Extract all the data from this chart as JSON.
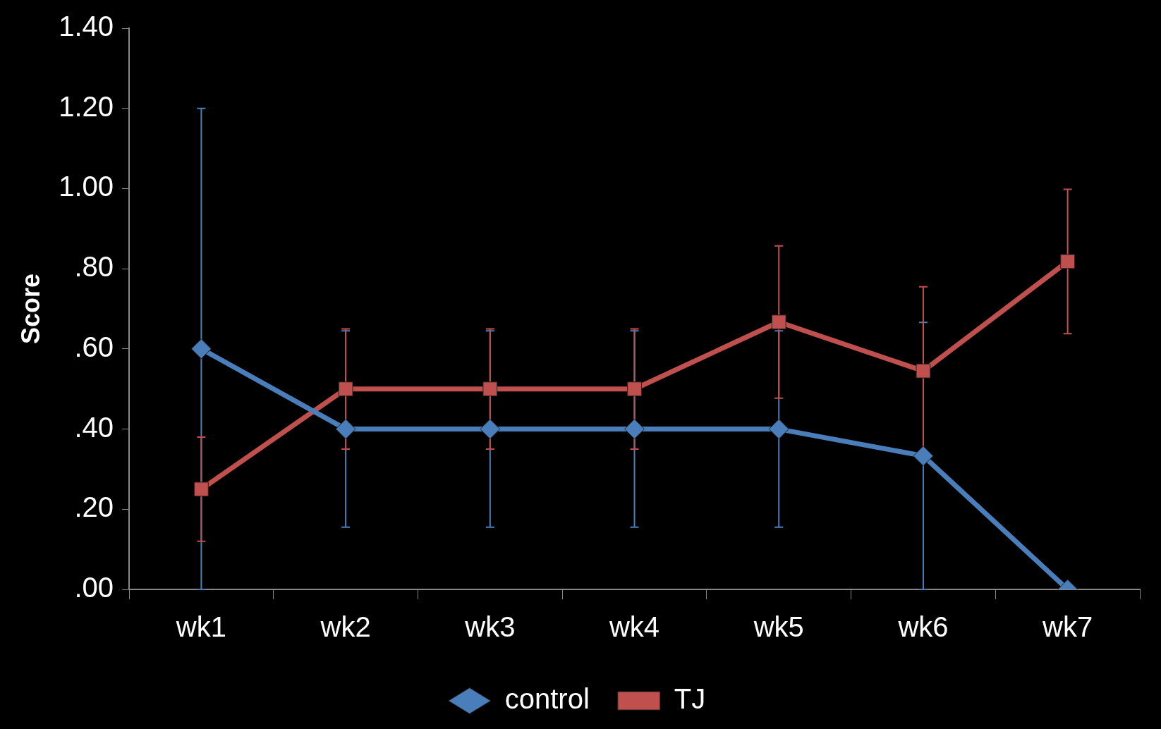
{
  "chart_data": {
    "type": "line",
    "ylabel": "Score",
    "categories": [
      "wk1",
      "wk2",
      "wk3",
      "wk4",
      "wk5",
      "wk6",
      "wk7"
    ],
    "series": [
      {
        "name": "control",
        "color": "#4a7ebb",
        "marker": "diamond",
        "values": [
          0.6,
          0.4,
          0.4,
          0.4,
          0.4,
          0.333,
          0.0
        ],
        "errors": [
          0.6,
          0.245,
          0.245,
          0.245,
          0.245,
          0.333,
          null
        ]
      },
      {
        "name": "TJ",
        "color": "#c0504d",
        "marker": "square",
        "values": [
          0.25,
          0.5,
          0.5,
          0.5,
          0.667,
          0.545,
          0.818
        ],
        "errors": [
          0.13,
          0.15,
          0.15,
          0.15,
          0.19,
          0.21,
          0.18
        ]
      }
    ],
    "ylim": [
      0,
      1.4
    ],
    "yticks": [
      {
        "value": 0,
        "label": ".00"
      },
      {
        "value": 0.2,
        "label": ".20"
      },
      {
        "value": 0.4,
        "label": ".40"
      },
      {
        "value": 0.6,
        "label": ".60"
      },
      {
        "value": 0.8,
        "label": ".80"
      },
      {
        "value": 1.0,
        "label": "1.00"
      },
      {
        "value": 1.2,
        "label": "1.20"
      },
      {
        "value": 1.4,
        "label": "1.40"
      }
    ],
    "grid": false,
    "legend": "bottom",
    "line_style": "solid"
  }
}
